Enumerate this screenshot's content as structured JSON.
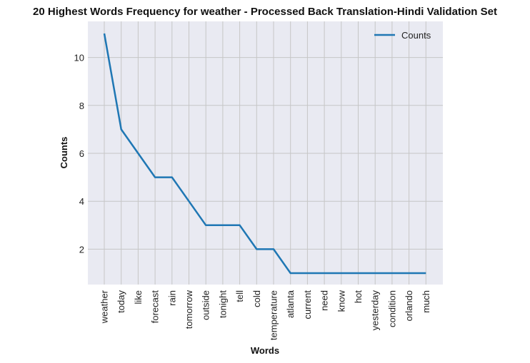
{
  "chart_data": {
    "type": "line",
    "title": "20 Highest Words Frequency for weather - Processed Back Translation-Hindi Validation Set",
    "xlabel": "Words",
    "ylabel": "Counts",
    "categories": [
      "weather",
      "today",
      "like",
      "forecast",
      "rain",
      "tomorrow",
      "outside",
      "tonight",
      "tell",
      "cold",
      "temperature",
      "atlanta",
      "current",
      "need",
      "know",
      "hot",
      "yesterday",
      "condition",
      "orlando",
      "much"
    ],
    "series": [
      {
        "name": "Counts",
        "values": [
          11,
          7,
          6,
          5,
          5,
          4,
          3,
          3,
          3,
          2,
          2,
          1,
          1,
          1,
          1,
          1,
          1,
          1,
          1,
          1
        ]
      }
    ],
    "yticks": [
      2,
      4,
      6,
      8,
      10
    ],
    "ylim": [
      0.5,
      11.5
    ],
    "grid": true,
    "legend": "top-right",
    "colors": {
      "line": "#1f77b4",
      "plot_bg": "#e9eaf2",
      "grid": "#c6c6c6"
    }
  }
}
